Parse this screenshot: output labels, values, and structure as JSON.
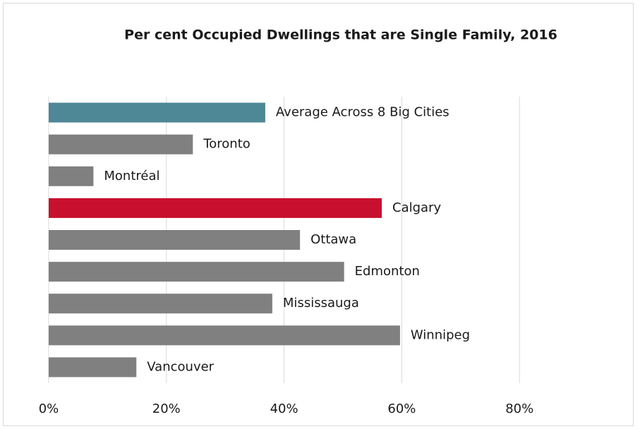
{
  "chart_data": {
    "type": "bar",
    "orientation": "horizontal",
    "title": "Per cent Occupied Dwellings that are Single Family, 2016",
    "categories": [
      "Average Across 8 Big Cities",
      "Toronto",
      "Montréal",
      "Calgary",
      "Ottawa",
      "Edmonton",
      "Mississauga",
      "Winnipeg",
      "Vancouver"
    ],
    "values": [
      36.8,
      24.5,
      7.6,
      56.6,
      42.7,
      50.2,
      38.0,
      59.7,
      14.9
    ],
    "colors": [
      "#4e8796",
      "#808080",
      "#808080",
      "#c8102e",
      "#808080",
      "#808080",
      "#808080",
      "#808080",
      "#808080"
    ],
    "xlim": [
      0,
      100
    ],
    "xticks": [
      {
        "value": 0,
        "label": "0%"
      },
      {
        "value": 20,
        "label": "20%"
      },
      {
        "value": 40,
        "label": "40%"
      },
      {
        "value": 60,
        "label": "60%"
      },
      {
        "value": 80,
        "label": "80%"
      }
    ],
    "grid": true
  }
}
